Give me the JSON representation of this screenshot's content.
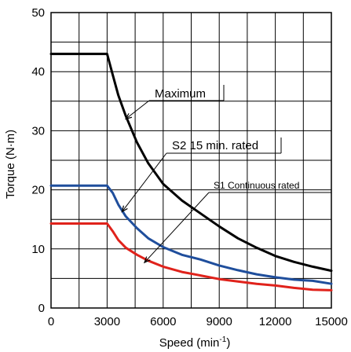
{
  "chart_data": {
    "type": "line",
    "xlabel": "Speed (min",
    "xlabel_sup": "-1",
    "xlabel_close": ")",
    "ylabel": "Torque (N·m)",
    "xlim": [
      0,
      15000
    ],
    "ylim": [
      0,
      50
    ],
    "x_ticks": [
      0,
      3000,
      6000,
      9000,
      12000,
      15000
    ],
    "y_ticks": [
      0,
      10,
      20,
      30,
      40,
      50
    ],
    "grid": true,
    "series": [
      {
        "name": "Maximum",
        "color": "#000000",
        "points": [
          [
            0,
            43
          ],
          [
            3000,
            43
          ],
          [
            3300,
            39.5
          ],
          [
            3600,
            36
          ],
          [
            4000,
            32.5
          ],
          [
            4600,
            28
          ],
          [
            5200,
            24.5
          ],
          [
            6000,
            21
          ],
          [
            7000,
            18.2
          ],
          [
            8000,
            16
          ],
          [
            9000,
            13.8
          ],
          [
            10000,
            11.8
          ],
          [
            11000,
            10.2
          ],
          [
            12000,
            8.8
          ],
          [
            13000,
            7.8
          ],
          [
            14000,
            7
          ],
          [
            15000,
            6.3
          ]
        ]
      },
      {
        "name": "S2 15 min. rated",
        "color": "#1f4e9c",
        "points": [
          [
            0,
            20.7
          ],
          [
            3000,
            20.7
          ],
          [
            3300,
            19.5
          ],
          [
            3600,
            17.5
          ],
          [
            4000,
            15.5
          ],
          [
            4600,
            13.5
          ],
          [
            5200,
            11.8
          ],
          [
            6000,
            10.3
          ],
          [
            7000,
            9
          ],
          [
            8000,
            8.2
          ],
          [
            9000,
            7.2
          ],
          [
            10000,
            6.4
          ],
          [
            11000,
            5.7
          ],
          [
            12000,
            5.2
          ],
          [
            13000,
            4.8
          ],
          [
            14000,
            4.6
          ],
          [
            15000,
            4.1
          ]
        ]
      },
      {
        "name": "S1 Continuous rated",
        "color": "#e0221b",
        "points": [
          [
            0,
            14.3
          ],
          [
            3000,
            14.3
          ],
          [
            3300,
            13
          ],
          [
            3600,
            11.5
          ],
          [
            4000,
            10.2
          ],
          [
            4600,
            9
          ],
          [
            5200,
            8
          ],
          [
            6000,
            7
          ],
          [
            7000,
            6.1
          ],
          [
            8000,
            5.5
          ],
          [
            9000,
            4.9
          ],
          [
            10000,
            4.5
          ],
          [
            11000,
            4.1
          ],
          [
            12000,
            3.8
          ],
          [
            13000,
            3.4
          ],
          [
            14000,
            3.1
          ],
          [
            15000,
            3
          ]
        ]
      }
    ],
    "annotations": [
      {
        "text": "Maximum",
        "series": 0,
        "point_x": 4000,
        "point_y": 32
      },
      {
        "text": "S2 15 min. rated",
        "series": 1,
        "point_x": 3800,
        "point_y": 16.3
      },
      {
        "text": "S1 Continuous rated",
        "series": 2,
        "point_x": 5000,
        "point_y": 7.7
      }
    ]
  }
}
